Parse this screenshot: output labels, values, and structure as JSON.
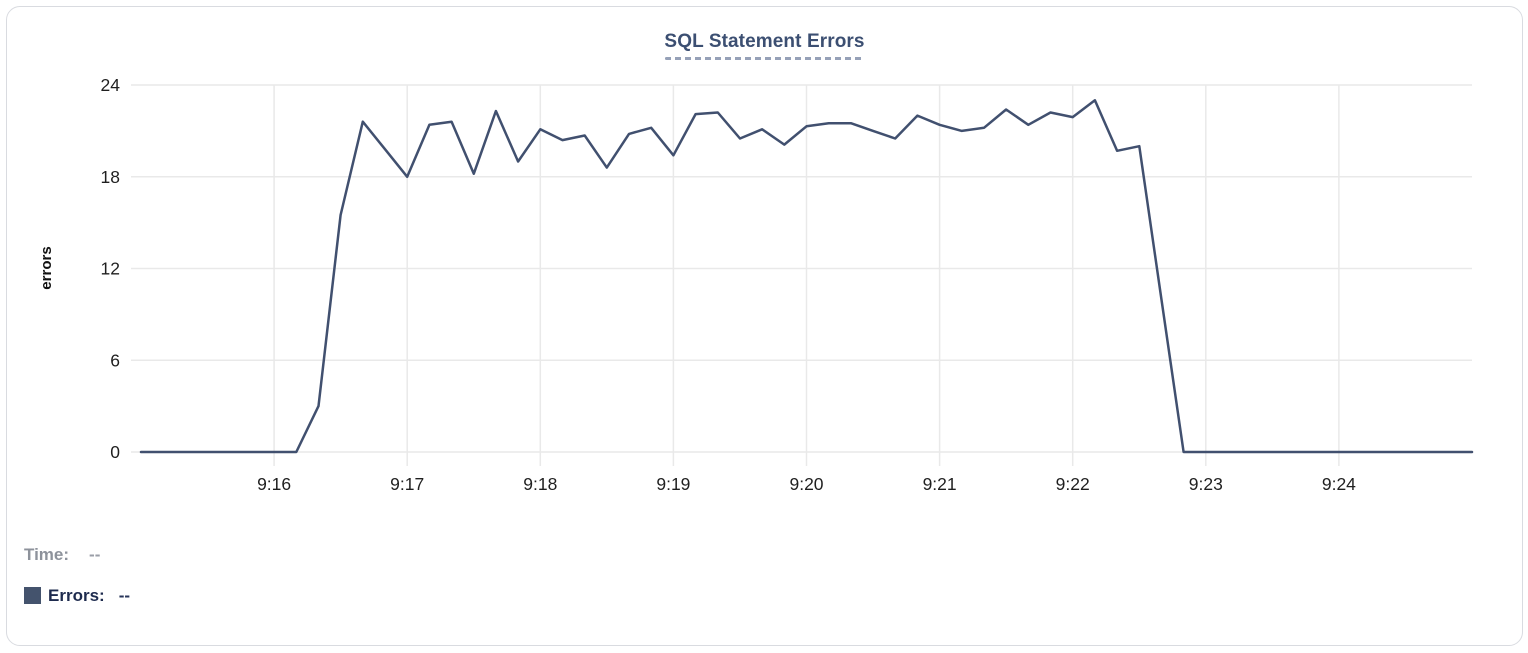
{
  "chart": {
    "title": "SQL Statement Errors"
  },
  "legend": {
    "time_label": "Time:",
    "time_value": "--",
    "errors_label": "Errors:",
    "errors_value": "--"
  },
  "colors": {
    "line": "#41506f",
    "title": "#3c4f72",
    "title_underline": "#96a1b8",
    "grid": "#e9e9e9",
    "tick_text": "#1f1f1f",
    "axis_label_text": "#111111",
    "time_label": "#8d929b",
    "legend_square": "#44536d",
    "errors_label": "#1e2b4e",
    "card_border": "#d9dbe0"
  },
  "chart_data": {
    "type": "line",
    "title": "SQL Statement Errors",
    "xlabel": "",
    "ylabel": "errors",
    "grid": true,
    "legend_position": "bottom-left",
    "x_ticks": [
      "9:16",
      "9:17",
      "9:18",
      "9:19",
      "9:20",
      "9:21",
      "9:22",
      "9:23",
      "9:24"
    ],
    "y_ticks": [
      0,
      6,
      12,
      18,
      24
    ],
    "x_range": [
      "9:15:00",
      "9:25:00"
    ],
    "ylim": [
      0,
      24
    ],
    "series": [
      {
        "name": "Errors",
        "points": [
          [
            "9:15:00",
            0
          ],
          [
            "9:15:10",
            0
          ],
          [
            "9:15:20",
            0
          ],
          [
            "9:15:30",
            0
          ],
          [
            "9:15:40",
            0
          ],
          [
            "9:15:50",
            0
          ],
          [
            "9:16:00",
            0
          ],
          [
            "9:16:10",
            0
          ],
          [
            "9:16:20",
            3
          ],
          [
            "9:16:30",
            15.5
          ],
          [
            "9:16:40",
            21.6
          ],
          [
            "9:16:50",
            19.8
          ],
          [
            "9:17:00",
            18
          ],
          [
            "9:17:10",
            21.4
          ],
          [
            "9:17:20",
            21.6
          ],
          [
            "9:17:30",
            18.2
          ],
          [
            "9:17:40",
            22.3
          ],
          [
            "9:17:50",
            19
          ],
          [
            "9:18:00",
            21.1
          ],
          [
            "9:18:10",
            20.4
          ],
          [
            "9:18:20",
            20.7
          ],
          [
            "9:18:30",
            18.6
          ],
          [
            "9:18:40",
            20.8
          ],
          [
            "9:18:50",
            21.2
          ],
          [
            "9:19:00",
            19.4
          ],
          [
            "9:19:10",
            22.1
          ],
          [
            "9:19:20",
            22.2
          ],
          [
            "9:19:30",
            20.5
          ],
          [
            "9:19:40",
            21.1
          ],
          [
            "9:19:50",
            20.1
          ],
          [
            "9:20:00",
            21.3
          ],
          [
            "9:20:10",
            21.5
          ],
          [
            "9:20:20",
            21.5
          ],
          [
            "9:20:30",
            21.0
          ],
          [
            "9:20:40",
            20.5
          ],
          [
            "9:20:50",
            22.0
          ],
          [
            "9:21:00",
            21.4
          ],
          [
            "9:21:10",
            21.0
          ],
          [
            "9:21:20",
            21.2
          ],
          [
            "9:21:30",
            22.4
          ],
          [
            "9:21:40",
            21.4
          ],
          [
            "9:21:50",
            22.2
          ],
          [
            "9:22:00",
            21.9
          ],
          [
            "9:22:10",
            23.0
          ],
          [
            "9:22:20",
            19.7
          ],
          [
            "9:22:30",
            20.0
          ],
          [
            "9:22:40",
            10.0
          ],
          [
            "9:22:50",
            0
          ],
          [
            "9:23:00",
            0
          ],
          [
            "9:23:10",
            0
          ],
          [
            "9:23:20",
            0
          ],
          [
            "9:23:30",
            0
          ],
          [
            "9:23:40",
            0
          ],
          [
            "9:23:50",
            0
          ],
          [
            "9:24:00",
            0
          ],
          [
            "9:24:10",
            0
          ],
          [
            "9:24:20",
            0
          ],
          [
            "9:24:30",
            0
          ],
          [
            "9:24:40",
            0
          ],
          [
            "9:24:50",
            0
          ],
          [
            "9:25:00",
            0
          ]
        ]
      }
    ]
  }
}
